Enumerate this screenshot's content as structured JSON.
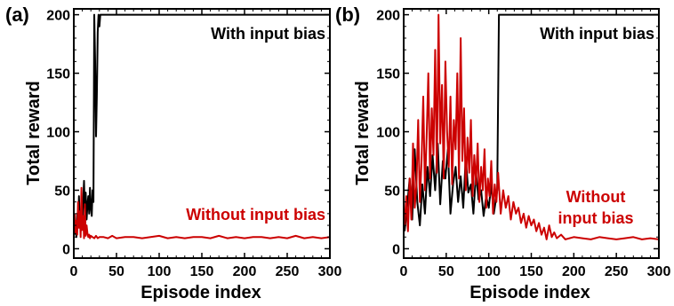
{
  "chart_data": [
    {
      "panel_label": "(a)",
      "type": "line",
      "xlabel": "Episode index",
      "ylabel": "Total reward",
      "xlim": [
        0,
        300
      ],
      "ylim": [
        -8,
        205
      ],
      "xticks": [
        0,
        50,
        100,
        150,
        200,
        250,
        300
      ],
      "yticks": [
        0,
        50,
        100,
        150,
        200
      ],
      "annotations": [
        {
          "text": "With input bias",
          "color": "#000000"
        },
        {
          "text": "Without input bias",
          "color": "#cc0000"
        }
      ],
      "series": [
        {
          "label": "With input bias",
          "color": "#000000",
          "x": [
            1,
            2,
            3,
            4,
            5,
            6,
            7,
            8,
            9,
            10,
            11,
            12,
            13,
            14,
            15,
            16,
            17,
            18,
            19,
            20,
            21,
            22,
            23,
            24,
            25,
            26,
            27,
            28,
            29,
            30,
            31,
            32,
            33,
            300
          ],
          "y": [
            12,
            22,
            10,
            30,
            18,
            45,
            25,
            15,
            35,
            20,
            42,
            58,
            30,
            48,
            25,
            38,
            45,
            30,
            52,
            35,
            28,
            50,
            40,
            200,
            160,
            96,
            130,
            185,
            200,
            190,
            200,
            200,
            200,
            200
          ]
        },
        {
          "label": "Without input bias",
          "color": "#cc0000",
          "x": [
            1,
            2,
            3,
            4,
            5,
            6,
            7,
            8,
            9,
            10,
            11,
            12,
            13,
            14,
            15,
            16,
            17,
            18,
            19,
            20,
            22,
            24,
            26,
            28,
            30,
            35,
            40,
            45,
            50,
            60,
            70,
            80,
            90,
            100,
            110,
            120,
            130,
            140,
            150,
            160,
            170,
            180,
            190,
            200,
            210,
            220,
            230,
            240,
            250,
            260,
            270,
            280,
            290,
            300
          ],
          "y": [
            30,
            14,
            24,
            12,
            40,
            18,
            32,
            10,
            52,
            16,
            28,
            9,
            38,
            11,
            20,
            13,
            10,
            12,
            9,
            11,
            10,
            9,
            11,
            9,
            10,
            10,
            9,
            11,
            9,
            10,
            10,
            9,
            10,
            11,
            9,
            10,
            9,
            10,
            10,
            9,
            11,
            9,
            10,
            9,
            10,
            10,
            9,
            10,
            9,
            11,
            9,
            10,
            9,
            10
          ]
        }
      ]
    },
    {
      "panel_label": "(b)",
      "type": "line",
      "xlabel": "Episode index",
      "ylabel": "Total reward",
      "xlim": [
        0,
        300
      ],
      "ylim": [
        -8,
        205
      ],
      "xticks": [
        0,
        50,
        100,
        150,
        200,
        250,
        300
      ],
      "yticks": [
        0,
        50,
        100,
        150,
        200
      ],
      "annotations": [
        {
          "text": "With input bias",
          "color": "#000000"
        },
        {
          "text": "Without",
          "color": "#cc0000"
        },
        {
          "text": "input bias",
          "color": "#cc0000"
        }
      ],
      "series": [
        {
          "label": "With input bias",
          "color": "#000000",
          "x": [
            1,
            4,
            7,
            10,
            13,
            16,
            19,
            22,
            25,
            28,
            31,
            34,
            37,
            40,
            43,
            46,
            49,
            52,
            55,
            58,
            61,
            64,
            67,
            70,
            73,
            76,
            79,
            82,
            85,
            88,
            91,
            94,
            97,
            100,
            103,
            106,
            108,
            110,
            112,
            300
          ],
          "y": [
            15,
            35,
            60,
            25,
            85,
            40,
            20,
            55,
            30,
            70,
            45,
            80,
            50,
            90,
            38,
            75,
            60,
            85,
            30,
            55,
            70,
            40,
            62,
            35,
            78,
            48,
            55,
            30,
            65,
            42,
            50,
            28,
            45,
            35,
            55,
            30,
            40,
            50,
            200,
            200
          ]
        },
        {
          "label": "Without input bias",
          "color": "#cc0000",
          "x": [
            1,
            3,
            5,
            7,
            9,
            11,
            13,
            15,
            17,
            19,
            21,
            23,
            25,
            27,
            29,
            31,
            33,
            35,
            37,
            39,
            41,
            43,
            45,
            47,
            49,
            51,
            53,
            55,
            57,
            59,
            61,
            63,
            65,
            67,
            69,
            71,
            73,
            75,
            77,
            79,
            81,
            83,
            85,
            87,
            89,
            91,
            93,
            95,
            97,
            99,
            101,
            103,
            105,
            107,
            109,
            111,
            114,
            117,
            120,
            123,
            126,
            129,
            132,
            135,
            138,
            141,
            144,
            147,
            150,
            153,
            156,
            159,
            162,
            165,
            168,
            171,
            174,
            177,
            180,
            185,
            190,
            200,
            210,
            220,
            230,
            240,
            250,
            260,
            270,
            280,
            290,
            300
          ],
          "y": [
            20,
            45,
            15,
            60,
            25,
            90,
            35,
            55,
            110,
            40,
            75,
            130,
            50,
            95,
            150,
            60,
            120,
            80,
            170,
            65,
            200,
            90,
            140,
            60,
            160,
            100,
            70,
            130,
            55,
            110,
            85,
            150,
            60,
            180,
            75,
            120,
            50,
            95,
            65,
            110,
            45,
            80,
            55,
            90,
            40,
            70,
            50,
            85,
            35,
            60,
            45,
            75,
            30,
            55,
            40,
            65,
            30,
            50,
            35,
            45,
            25,
            40,
            30,
            35,
            22,
            30,
            18,
            28,
            20,
            25,
            15,
            22,
            12,
            18,
            8,
            20,
            10,
            14,
            9,
            12,
            8,
            10,
            9,
            8,
            10,
            9,
            8,
            9,
            10,
            8,
            9,
            8
          ]
        }
      ]
    }
  ]
}
